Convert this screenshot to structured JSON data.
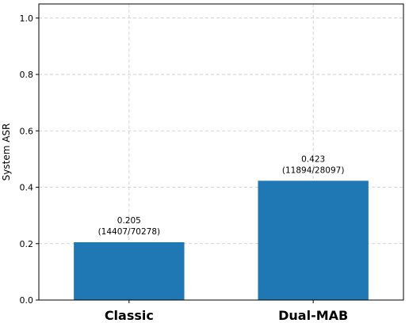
{
  "chart_data": {
    "type": "bar",
    "categories": [
      "Classic",
      "Dual-MAB"
    ],
    "values": [
      0.205,
      0.423
    ],
    "annotations": [
      "(14407/70278)",
      "(11894/28097)"
    ],
    "title": "",
    "xlabel": "",
    "ylabel": "System ASR",
    "ylim": [
      0,
      1.05
    ],
    "yticks": [
      0.0,
      0.2,
      0.4,
      0.6,
      0.8,
      1.0
    ],
    "ytick_labels": [
      "0.0",
      "0.2",
      "0.4",
      "0.6",
      "0.8",
      "1.0"
    ],
    "grid": true,
    "bar_color": "#1f77b4"
  }
}
